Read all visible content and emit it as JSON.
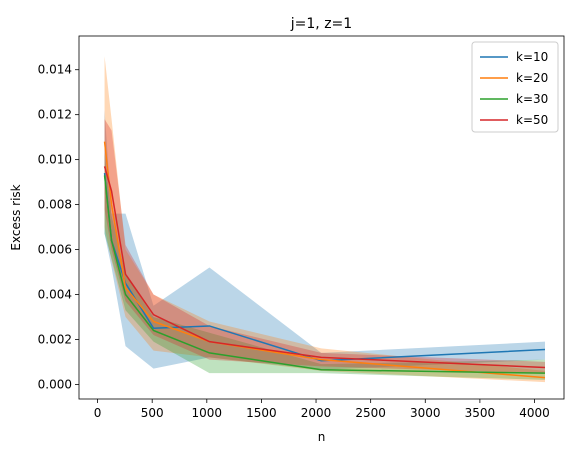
{
  "chart_data": {
    "type": "line",
    "title": "j=1, z=1",
    "xlabel": "n",
    "ylabel": "Excess risk",
    "x": [
      64,
      128,
      256,
      512,
      1024,
      2048,
      4096
    ],
    "xlim": [
      -170,
      4270
    ],
    "ylim": [
      -0.00065,
      0.0155
    ],
    "xticks": [
      0,
      500,
      1000,
      1500,
      2000,
      2500,
      3000,
      3500,
      4000
    ],
    "yticks": [
      0.0,
      0.002,
      0.004,
      0.006,
      0.008,
      0.01,
      0.012,
      0.014
    ],
    "ytick_labels": [
      "0.000",
      "0.002",
      "0.004",
      "0.006",
      "0.008",
      "0.010",
      "0.012",
      "0.014"
    ],
    "grid": false,
    "legend_position": "top-right",
    "series": [
      {
        "name": "k=10",
        "color": "#1f77b4",
        "values": [
          0.0094,
          0.0064,
          0.0045,
          0.0025,
          0.0026,
          0.00105,
          0.00155
        ],
        "lower": [
          0.0067,
          0.0052,
          0.0017,
          0.0007,
          0.0012,
          0.00065,
          0.0011
        ],
        "upper": [
          0.0122,
          0.0076,
          0.0076,
          0.0035,
          0.0052,
          0.0014,
          0.0019
        ]
      },
      {
        "name": "k=20",
        "color": "#ff7f0e",
        "values": [
          0.0108,
          0.008,
          0.0043,
          0.0028,
          0.0019,
          0.0011,
          0.0003
        ],
        "lower": [
          0.007,
          0.0055,
          0.003,
          0.0015,
          0.0012,
          0.0006,
          0.0001
        ],
        "upper": [
          0.0146,
          0.0118,
          0.006,
          0.004,
          0.0028,
          0.0016,
          0.0006
        ]
      },
      {
        "name": "k=30",
        "color": "#2ca02c",
        "values": [
          0.0093,
          0.0064,
          0.004,
          0.0024,
          0.0014,
          0.00065,
          0.0005
        ],
        "lower": [
          0.0067,
          0.0056,
          0.0033,
          0.0019,
          0.0005,
          0.0005,
          0.0002
        ],
        "upper": [
          0.0103,
          0.0075,
          0.0049,
          0.003,
          0.0023,
          0.0009,
          0.0011
        ]
      },
      {
        "name": "k=50",
        "color": "#d62728",
        "values": [
          0.0097,
          0.0086,
          0.0049,
          0.0031,
          0.0019,
          0.0012,
          0.00075
        ],
        "lower": [
          0.0078,
          0.006,
          0.0037,
          0.0022,
          0.0011,
          0.0008,
          0.0005
        ],
        "upper": [
          0.0118,
          0.0113,
          0.0062,
          0.004,
          0.0026,
          0.0014,
          0.001
        ]
      }
    ]
  }
}
